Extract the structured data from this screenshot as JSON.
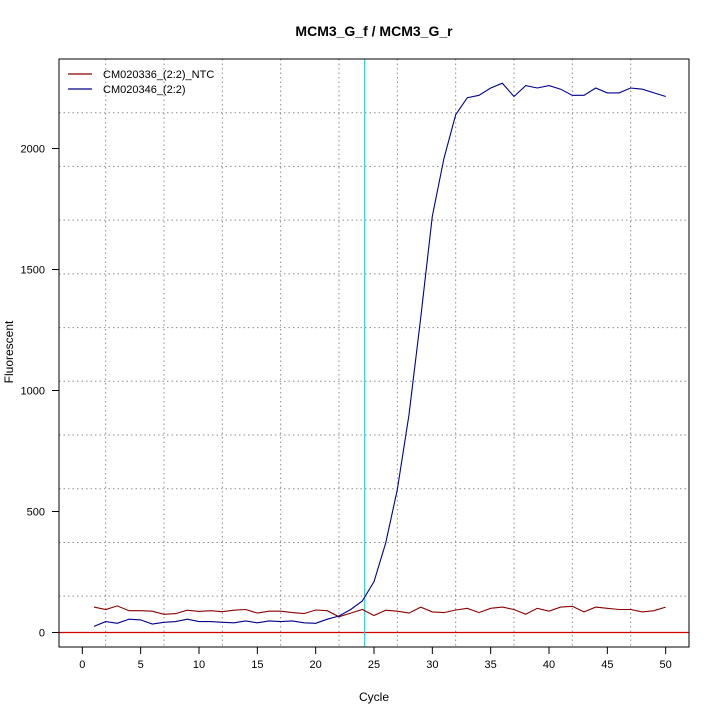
{
  "chart_data": {
    "type": "line",
    "title": "MCM3_G_f / MCM3_G_r",
    "xlabel": "Cycle",
    "ylabel": "Fluorescent",
    "xlim": [
      -2,
      52
    ],
    "ylim": [
      -60,
      2370
    ],
    "xticks": [
      "0",
      "5",
      "10",
      "15",
      "20",
      "25",
      "30",
      "35",
      "40",
      "45",
      "50"
    ],
    "yticks": [
      "0",
      "500",
      "1000",
      "1500",
      "2000"
    ],
    "grid": true,
    "legend_position": "top-left",
    "threshold": 0,
    "threshold_color": "#cc0000",
    "cycle_marker": 24.2,
    "cycle_marker_color": "#00e5ee",
    "x": [
      1,
      2,
      3,
      4,
      5,
      6,
      7,
      8,
      9,
      10,
      11,
      12,
      13,
      14,
      15,
      16,
      17,
      18,
      19,
      20,
      21,
      22,
      23,
      24,
      25,
      26,
      27,
      28,
      29,
      30,
      31,
      32,
      33,
      34,
      35,
      36,
      37,
      38,
      39,
      40,
      41,
      42,
      43,
      44,
      45,
      46,
      47,
      48,
      49,
      50
    ],
    "series": [
      {
        "name": "CM020336_(2:2)_NTC",
        "color": "#8b0000",
        "values": [
          105,
          95,
          110,
          90,
          90,
          88,
          75,
          78,
          92,
          87,
          90,
          86,
          92,
          95,
          80,
          88,
          88,
          82,
          78,
          93,
          90,
          65,
          80,
          95,
          70,
          92,
          88,
          80,
          105,
          85,
          82,
          93,
          100,
          82,
          100,
          105,
          95,
          75,
          100,
          88,
          105,
          108,
          85,
          105,
          100,
          95,
          95,
          85,
          90,
          105
        ]
      },
      {
        "name": "CM020346_(2:2)",
        "color": "#00008b",
        "values": [
          25,
          45,
          38,
          55,
          52,
          35,
          42,
          45,
          55,
          45,
          45,
          42,
          40,
          48,
          40,
          48,
          45,
          48,
          40,
          38,
          55,
          68,
          95,
          130,
          210,
          370,
          590,
          900,
          1300,
          1720,
          1960,
          2140,
          2210,
          2220,
          2250,
          2270,
          2215,
          2260,
          2250,
          2260,
          2245,
          2220,
          2220,
          2250,
          2230,
          2230,
          2250,
          2245,
          2230,
          2215
        ]
      }
    ]
  }
}
